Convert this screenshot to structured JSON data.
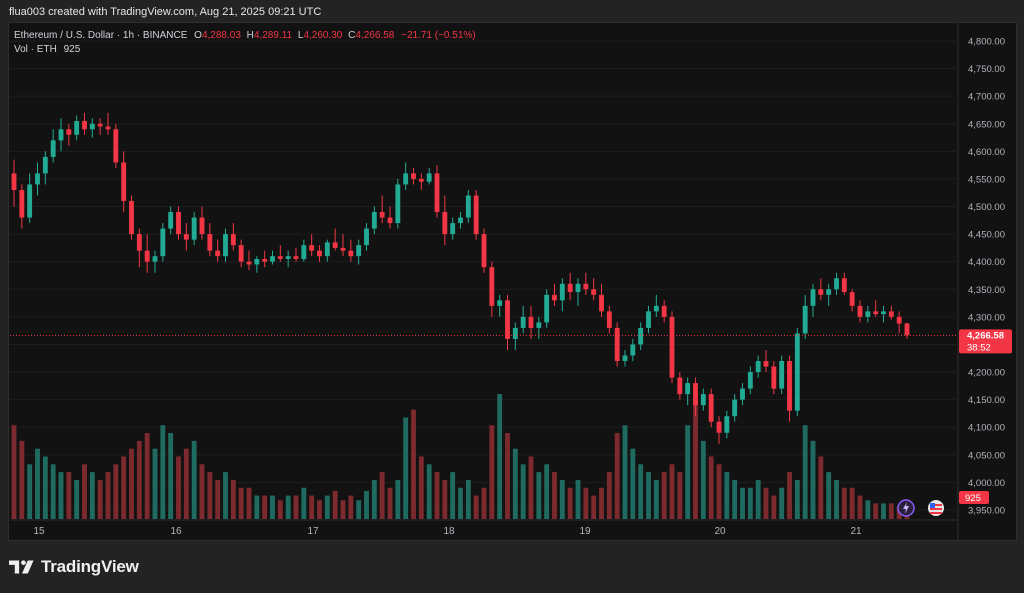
{
  "header": {
    "attribution": "flua003 created with TradingView.com, Aug 21, 2025 09:21 UTC"
  },
  "legend": {
    "symbol": "Ethereum / U.S. Dollar · 1h · BINANCE",
    "o_label": "O",
    "o_val": "4,288.03",
    "h_label": "H",
    "h_val": "4,289.11",
    "l_label": "L",
    "l_val": "4,260.30",
    "c_label": "C",
    "c_val": "4,266.58",
    "change": "−21.71 (−0.51%)",
    "vol_label": "Vol · ETH",
    "vol_val": "925"
  },
  "price_tag": {
    "price": "4,266.58",
    "countdown": "38:52"
  },
  "volume_tag": "925",
  "footer": {
    "brand": "TradingView"
  },
  "colors": {
    "up": "#22ab94",
    "down": "#f23645",
    "up_vol": "#1f6b61",
    "down_vol": "#7d2a2f",
    "bg": "#121212",
    "grid": "#1e1e1e"
  },
  "chart_data": {
    "type": "candlestick",
    "y_ticks": [
      "4,800.00",
      "4,750.00",
      "4,700.00",
      "4,650.00",
      "4,600.00",
      "4,550.00",
      "4,500.00",
      "4,450.00",
      "4,400.00",
      "4,350.00",
      "4,300.00",
      "4,250.00",
      "4,200.00",
      "4,150.00",
      "4,100.00",
      "4,050.00",
      "4,000.00",
      "3,950.00"
    ],
    "ylim": [
      3950,
      4800
    ],
    "x_ticks": [
      "15",
      "16",
      "17",
      "18",
      "19",
      "20",
      "21"
    ],
    "last_price": 4266.58,
    "current_volume": 925,
    "candles": [
      [
        4560,
        4585,
        4500,
        4530
      ],
      [
        4530,
        4540,
        4460,
        4480
      ],
      [
        4480,
        4560,
        4470,
        4540
      ],
      [
        4540,
        4580,
        4520,
        4560
      ],
      [
        4560,
        4600,
        4540,
        4590
      ],
      [
        4590,
        4640,
        4580,
        4620
      ],
      [
        4620,
        4660,
        4600,
        4640
      ],
      [
        4640,
        4650,
        4610,
        4630
      ],
      [
        4630,
        4665,
        4620,
        4655
      ],
      [
        4655,
        4670,
        4630,
        4640
      ],
      [
        4640,
        4660,
        4625,
        4650
      ],
      [
        4650,
        4660,
        4630,
        4645
      ],
      [
        4645,
        4670,
        4630,
        4640
      ],
      [
        4640,
        4650,
        4570,
        4580
      ],
      [
        4580,
        4600,
        4490,
        4510
      ],
      [
        4510,
        4520,
        4440,
        4450
      ],
      [
        4450,
        4460,
        4390,
        4420
      ],
      [
        4420,
        4450,
        4380,
        4400
      ],
      [
        4400,
        4420,
        4380,
        4410
      ],
      [
        4410,
        4470,
        4400,
        4460
      ],
      [
        4460,
        4500,
        4450,
        4490
      ],
      [
        4490,
        4500,
        4440,
        4450
      ],
      [
        4450,
        4470,
        4420,
        4440
      ],
      [
        4440,
        4490,
        4430,
        4480
      ],
      [
        4480,
        4500,
        4440,
        4450
      ],
      [
        4450,
        4470,
        4410,
        4420
      ],
      [
        4420,
        4440,
        4400,
        4410
      ],
      [
        4410,
        4460,
        4400,
        4450
      ],
      [
        4450,
        4470,
        4420,
        4430
      ],
      [
        4430,
        4440,
        4390,
        4400
      ],
      [
        4400,
        4420,
        4385,
        4395
      ],
      [
        4395,
        4410,
        4380,
        4405
      ],
      [
        4405,
        4420,
        4390,
        4400
      ],
      [
        4400,
        4420,
        4395,
        4410
      ],
      [
        4410,
        4430,
        4400,
        4405
      ],
      [
        4405,
        4420,
        4390,
        4410
      ],
      [
        4410,
        4425,
        4400,
        4405
      ],
      [
        4405,
        4440,
        4400,
        4430
      ],
      [
        4430,
        4450,
        4410,
        4420
      ],
      [
        4420,
        4430,
        4400,
        4410
      ],
      [
        4410,
        4440,
        4400,
        4435
      ],
      [
        4435,
        4460,
        4420,
        4425
      ],
      [
        4425,
        4450,
        4410,
        4420
      ],
      [
        4420,
        4440,
        4400,
        4410
      ],
      [
        4410,
        4440,
        4395,
        4430
      ],
      [
        4430,
        4470,
        4420,
        4460
      ],
      [
        4460,
        4500,
        4450,
        4490
      ],
      [
        4490,
        4520,
        4470,
        4480
      ],
      [
        4480,
        4500,
        4460,
        4470
      ],
      [
        4470,
        4550,
        4460,
        4540
      ],
      [
        4540,
        4580,
        4530,
        4560
      ],
      [
        4560,
        4570,
        4540,
        4550
      ],
      [
        4550,
        4560,
        4530,
        4545
      ],
      [
        4545,
        4570,
        4540,
        4560
      ],
      [
        4560,
        4575,
        4480,
        4490
      ],
      [
        4490,
        4520,
        4430,
        4450
      ],
      [
        4450,
        4480,
        4440,
        4470
      ],
      [
        4470,
        4490,
        4460,
        4480
      ],
      [
        4480,
        4530,
        4470,
        4520
      ],
      [
        4520,
        4530,
        4440,
        4450
      ],
      [
        4450,
        4460,
        4380,
        4390
      ],
      [
        4390,
        4400,
        4300,
        4320
      ],
      [
        4320,
        4340,
        4300,
        4330
      ],
      [
        4330,
        4340,
        4240,
        4260
      ],
      [
        4260,
        4290,
        4240,
        4280
      ],
      [
        4280,
        4320,
        4270,
        4300
      ],
      [
        4300,
        4320,
        4260,
        4280
      ],
      [
        4280,
        4300,
        4260,
        4290
      ],
      [
        4290,
        4350,
        4280,
        4340
      ],
      [
        4340,
        4360,
        4320,
        4330
      ],
      [
        4330,
        4370,
        4310,
        4360
      ],
      [
        4360,
        4380,
        4330,
        4345
      ],
      [
        4345,
        4370,
        4320,
        4360
      ],
      [
        4360,
        4380,
        4340,
        4350
      ],
      [
        4350,
        4370,
        4330,
        4340
      ],
      [
        4340,
        4360,
        4300,
        4310
      ],
      [
        4310,
        4320,
        4270,
        4280
      ],
      [
        4280,
        4290,
        4210,
        4220
      ],
      [
        4220,
        4240,
        4210,
        4230
      ],
      [
        4230,
        4260,
        4220,
        4250
      ],
      [
        4250,
        4290,
        4240,
        4280
      ],
      [
        4280,
        4320,
        4270,
        4310
      ],
      [
        4310,
        4340,
        4300,
        4320
      ],
      [
        4320,
        4330,
        4290,
        4300
      ],
      [
        4300,
        4310,
        4180,
        4190
      ],
      [
        4190,
        4200,
        4150,
        4160
      ],
      [
        4160,
        4190,
        4140,
        4180
      ],
      [
        4180,
        4190,
        4120,
        4140
      ],
      [
        4140,
        4170,
        4130,
        4160
      ],
      [
        4160,
        4170,
        4100,
        4110
      ],
      [
        4110,
        4120,
        4070,
        4090
      ],
      [
        4090,
        4130,
        4080,
        4120
      ],
      [
        4120,
        4160,
        4110,
        4150
      ],
      [
        4150,
        4180,
        4140,
        4170
      ],
      [
        4170,
        4210,
        4160,
        4200
      ],
      [
        4200,
        4230,
        4190,
        4220
      ],
      [
        4220,
        4240,
        4200,
        4210
      ],
      [
        4210,
        4220,
        4160,
        4170
      ],
      [
        4170,
        4230,
        4160,
        4220
      ],
      [
        4220,
        4230,
        4110,
        4130
      ],
      [
        4130,
        4280,
        4120,
        4270
      ],
      [
        4270,
        4340,
        4260,
        4320
      ],
      [
        4320,
        4360,
        4300,
        4350
      ],
      [
        4350,
        4370,
        4330,
        4340
      ],
      [
        4340,
        4360,
        4320,
        4350
      ],
      [
        4350,
        4380,
        4340,
        4370
      ],
      [
        4370,
        4380,
        4340,
        4345
      ],
      [
        4345,
        4350,
        4310,
        4320
      ],
      [
        4320,
        4330,
        4290,
        4300
      ],
      [
        4300,
        4320,
        4290,
        4310
      ],
      [
        4310,
        4330,
        4300,
        4305
      ],
      [
        4305,
        4320,
        4290,
        4310
      ],
      [
        4310,
        4320,
        4295,
        4300
      ],
      [
        4300,
        4310,
        4270,
        4288
      ],
      [
        4288.03,
        4289.11,
        4260.3,
        4266.58
      ]
    ],
    "volumes": [
      60,
      50,
      35,
      45,
      40,
      35,
      30,
      30,
      25,
      35,
      30,
      25,
      30,
      35,
      40,
      45,
      50,
      55,
      45,
      60,
      55,
      40,
      45,
      50,
      35,
      30,
      25,
      30,
      25,
      20,
      20,
      15,
      15,
      15,
      12,
      15,
      15,
      20,
      15,
      12,
      15,
      18,
      12,
      15,
      12,
      18,
      25,
      30,
      20,
      25,
      65,
      70,
      40,
      35,
      30,
      25,
      30,
      20,
      25,
      15,
      20,
      60,
      80,
      55,
      45,
      35,
      40,
      30,
      35,
      30,
      25,
      20,
      25,
      20,
      15,
      20,
      30,
      55,
      60,
      45,
      35,
      30,
      25,
      30,
      35,
      30,
      60,
      75,
      50,
      40,
      35,
      30,
      25,
      20,
      20,
      25,
      20,
      15,
      20,
      30,
      25,
      60,
      50,
      40,
      30,
      25,
      20,
      20,
      15,
      12,
      10,
      10,
      10,
      8,
      8
    ]
  }
}
